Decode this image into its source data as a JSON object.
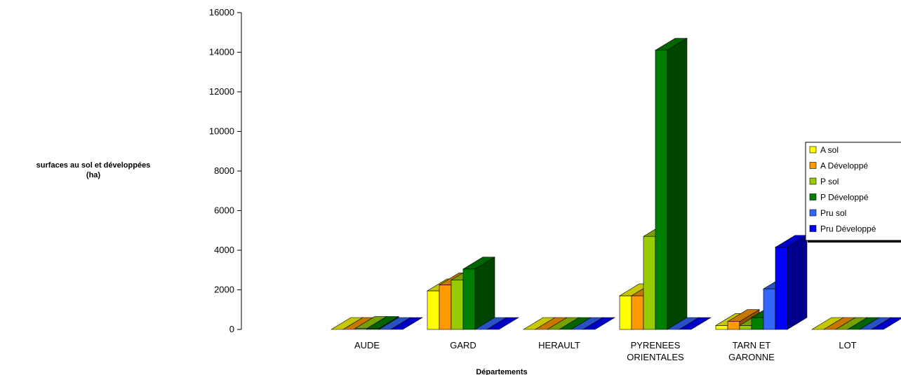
{
  "chart_data": {
    "type": "bar",
    "title": "",
    "ylabel_lines": [
      "surfaces au sol et développées",
      "(ha)"
    ],
    "xlabel": "Départements",
    "ylim": [
      0,
      16000
    ],
    "yticks": [
      0,
      2000,
      4000,
      6000,
      8000,
      10000,
      12000,
      14000,
      16000
    ],
    "categories": [
      [
        "AUDE"
      ],
      [
        "GARD"
      ],
      [
        "HERAULT"
      ],
      [
        "PYRENEES",
        "ORIENTALES"
      ],
      [
        "TARN ET",
        "GARONNE"
      ],
      [
        "LOT"
      ]
    ],
    "series": [
      {
        "name": "A sol",
        "color": "#ffff00",
        "values": [
          0,
          1950,
          0,
          1700,
          200,
          0
        ]
      },
      {
        "name": "A Développé",
        "color": "#ff9900",
        "values": [
          0,
          2250,
          0,
          1700,
          400,
          0
        ]
      },
      {
        "name": "P sol",
        "color": "#99cc00",
        "values": [
          50,
          2500,
          0,
          4700,
          200,
          0
        ]
      },
      {
        "name": "P Développé",
        "color": "#008000",
        "values": [
          50,
          3050,
          0,
          14100,
          600,
          0
        ]
      },
      {
        "name": "Pru sol",
        "color": "#3366ff",
        "values": [
          0,
          0,
          0,
          0,
          2050,
          0
        ]
      },
      {
        "name": "Pru Développé",
        "color": "#0000ff",
        "values": [
          0,
          0,
          0,
          0,
          4150,
          0
        ]
      }
    ],
    "legend_position": "right",
    "grid": false
  }
}
